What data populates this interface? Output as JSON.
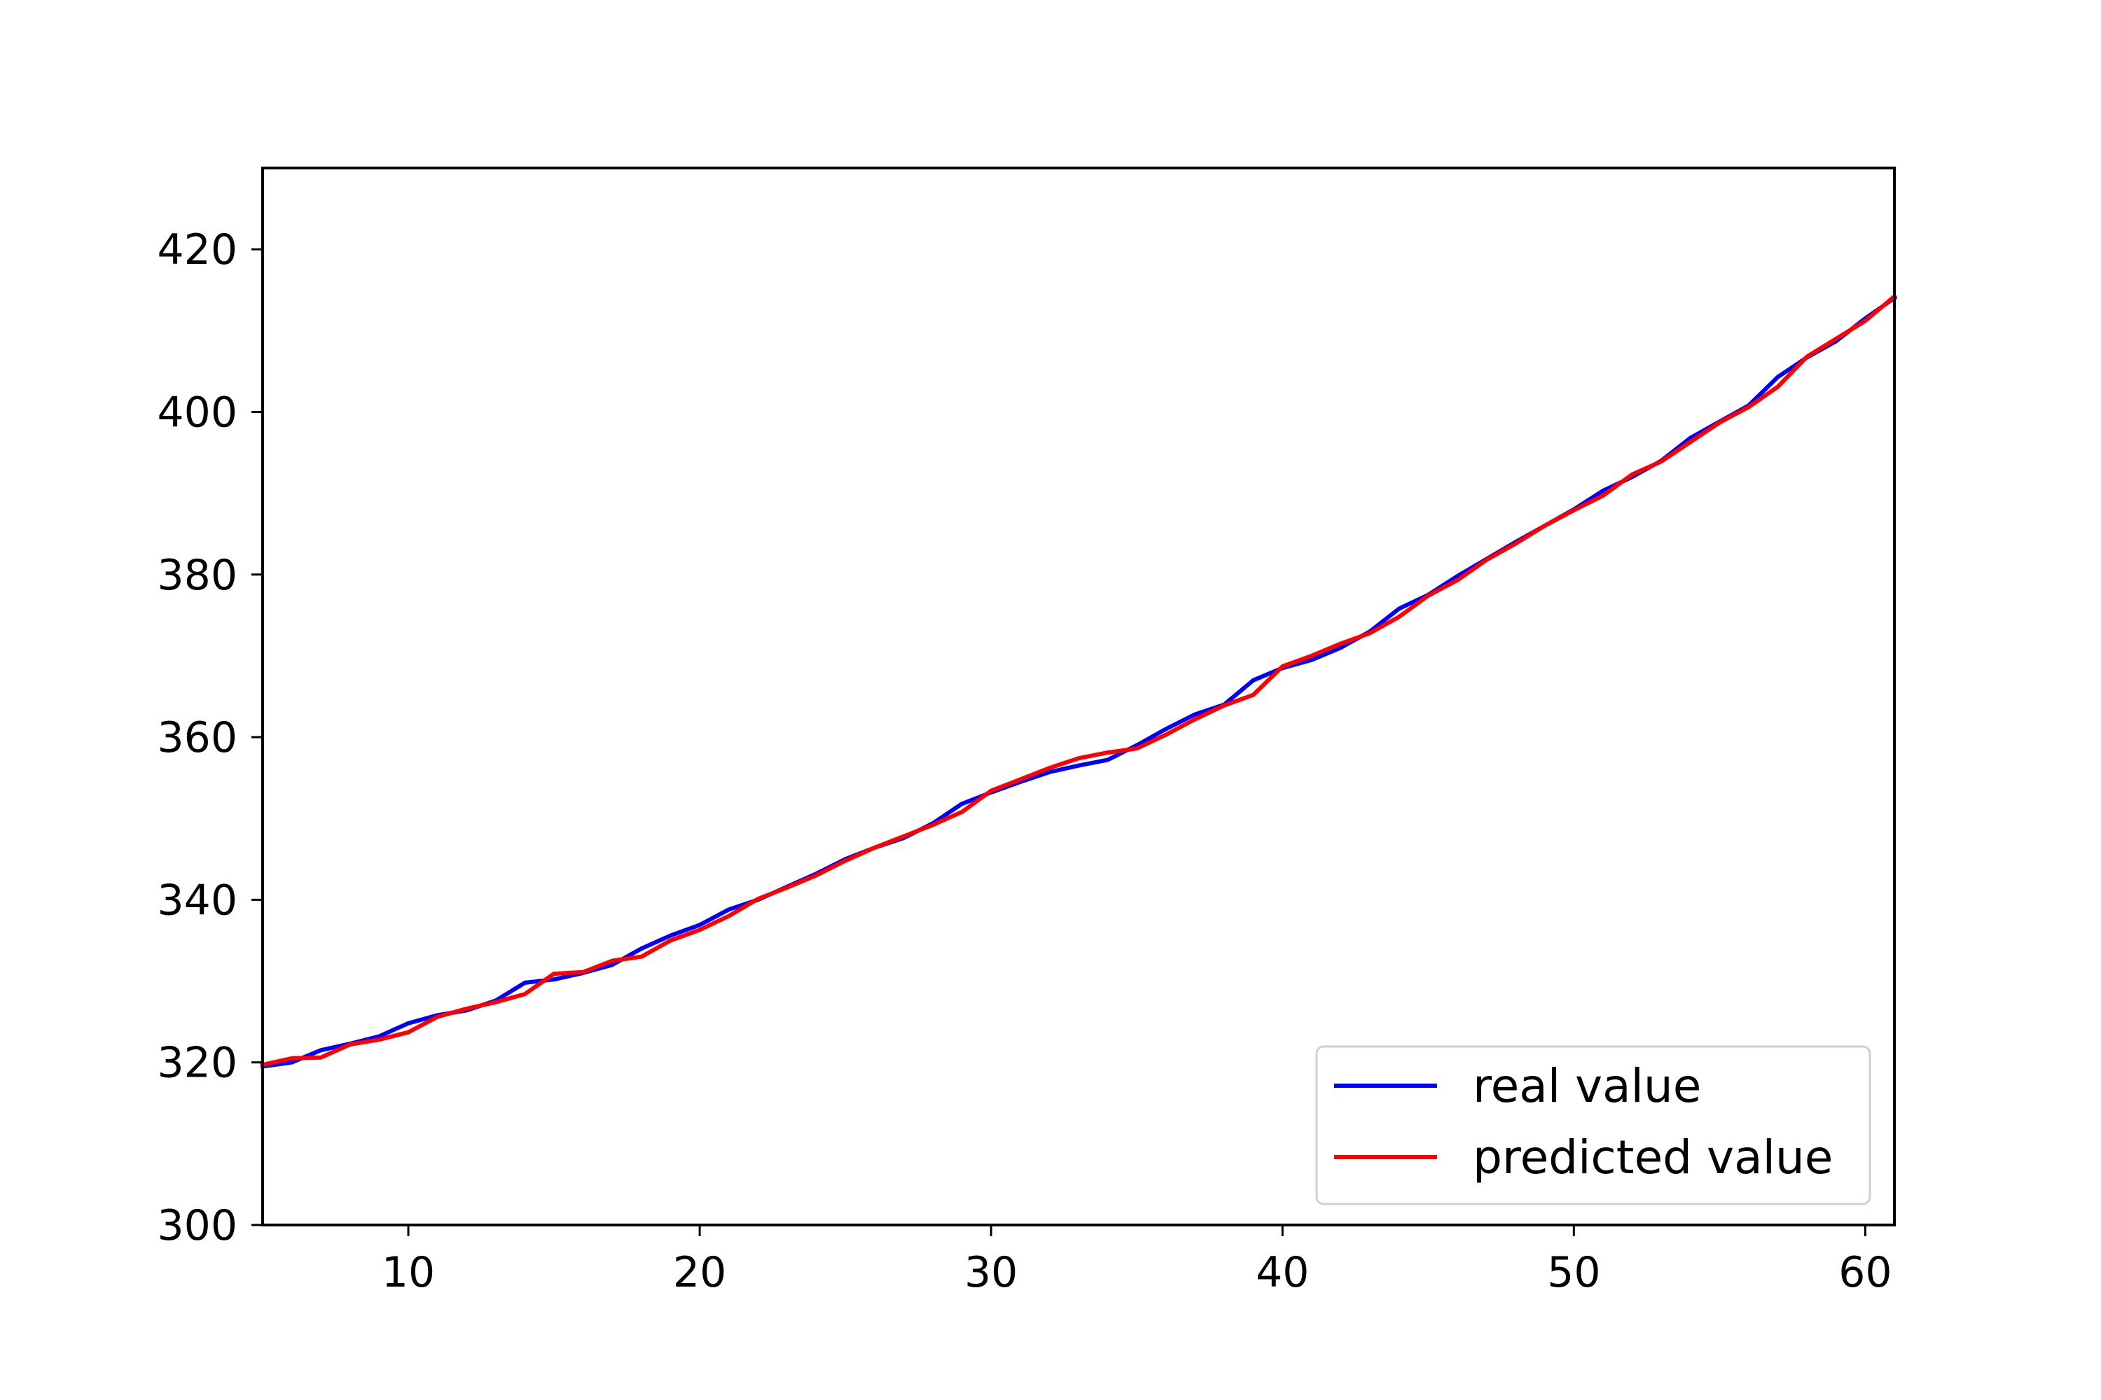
{
  "chart_data": {
    "type": "line",
    "title": "",
    "xlabel": "",
    "ylabel": "",
    "xlim": [
      5,
      61
    ],
    "ylim": [
      300,
      430
    ],
    "x_ticks": [
      10,
      20,
      30,
      40,
      50,
      60
    ],
    "y_ticks": [
      300,
      320,
      340,
      360,
      380,
      400,
      420
    ],
    "x_tick_labels": [
      "10",
      "20",
      "30",
      "40",
      "50",
      "60"
    ],
    "y_tick_labels": [
      "300",
      "320",
      "340",
      "360",
      "380",
      "400",
      "420"
    ],
    "grid": false,
    "legend_position": "lower-right",
    "x": [
      5,
      6,
      7,
      8,
      9,
      10,
      11,
      12,
      13,
      14,
      15,
      16,
      17,
      18,
      19,
      20,
      21,
      22,
      23,
      24,
      25,
      26,
      27,
      28,
      29,
      30,
      31,
      32,
      33,
      34,
      35,
      36,
      37,
      38,
      39,
      40,
      41,
      42,
      43,
      44,
      45,
      46,
      47,
      48,
      49,
      50,
      51,
      52,
      53,
      54,
      55,
      56,
      57,
      58,
      59,
      60,
      61
    ],
    "series": [
      {
        "name": "real value",
        "color": "#0000ff",
        "values": [
          319.5,
          320.0,
          321.5,
          322.3,
          323.2,
          324.8,
          325.8,
          326.4,
          327.6,
          329.8,
          330.2,
          331.0,
          332.0,
          334.0,
          335.6,
          336.9,
          338.8,
          340.0,
          341.6,
          343.2,
          345.0,
          346.4,
          347.6,
          349.4,
          351.8,
          353.2,
          354.5,
          355.7,
          356.5,
          357.2,
          359.0,
          361.0,
          362.8,
          364.0,
          367.0,
          368.5,
          369.5,
          371.0,
          373.0,
          375.8,
          377.5,
          379.8,
          381.9,
          384.0,
          386.0,
          388.0,
          390.3,
          392.0,
          394.0,
          396.8,
          398.8,
          400.8,
          404.3,
          406.7,
          408.7,
          411.5,
          414.0
        ]
      },
      {
        "name": "predicted value",
        "color": "#ff0000",
        "values": [
          319.7,
          320.5,
          320.6,
          322.2,
          322.8,
          323.7,
          325.6,
          326.6,
          327.4,
          328.4,
          330.9,
          331.1,
          332.5,
          333.0,
          335.0,
          336.3,
          338.0,
          340.1,
          341.5,
          343.0,
          344.8,
          346.4,
          347.8,
          349.2,
          350.8,
          353.4,
          354.8,
          356.2,
          357.4,
          358.1,
          358.6,
          360.3,
          362.2,
          363.9,
          365.2,
          368.7,
          370.0,
          371.5,
          372.8,
          374.8,
          377.4,
          379.3,
          381.8,
          383.8,
          386.0,
          387.9,
          389.7,
          392.3,
          393.9,
          396.3,
          398.7,
          400.6,
          403.1,
          406.8,
          409.0,
          411.2,
          414.2
        ]
      }
    ]
  }
}
